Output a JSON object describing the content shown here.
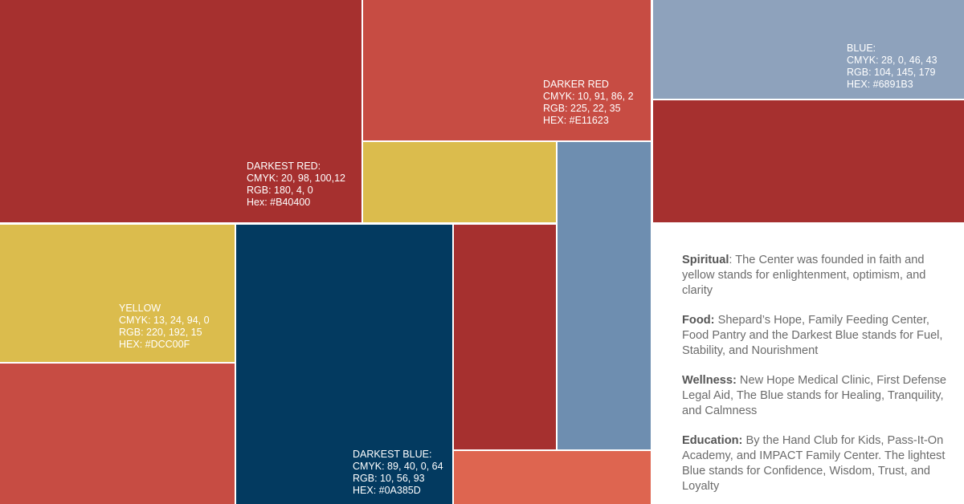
{
  "colors": {
    "darkest_red": "#A6302F",
    "darker_red": "#C74C43",
    "yellow": "#DBBC4D",
    "mid_blue": "#6E8EB0",
    "light_blue": "#8EA2BC",
    "darkest_blue": "#033A60",
    "coral": "#DE6550"
  },
  "swatches": {
    "darkest_red": {
      "name": "DARKEST RED:",
      "cmyk": "CMYK: 20, 98, 100,12",
      "rgb": "RGB: 180, 4, 0",
      "hex": "Hex: #B40400"
    },
    "darker_red": {
      "name": "DARKER RED",
      "cmyk": "CMYK: 10, 91, 86, 2",
      "rgb": "RGB: 225, 22, 35",
      "hex": "HEX: #E11623"
    },
    "blue": {
      "name": "BLUE:",
      "cmyk": "CMYK: 28, 0, 46, 43",
      "rgb": "RGB: 104, 145, 179",
      "hex": "HEX: #6891B3"
    },
    "yellow": {
      "name": "YELLOW",
      "cmyk": "CMYK: 13, 24, 94, 0",
      "rgb": "RGB: 220, 192, 15",
      "hex": "HEX: #DCC00F"
    },
    "darkest_blue": {
      "name": "DARKEST BLUE:",
      "cmyk": "CMYK: 89, 40, 0, 64",
      "rgb": "RGB: 10, 56, 93",
      "hex": "HEX: #0A385D"
    }
  },
  "legend": [
    {
      "title": "Spiritual",
      "text": ": The Center was founded in faith and yellow stands for enlightenment, optimism, and clarity"
    },
    {
      "title": "Food:",
      "text": " Shepard’s Hope, Family Feeding Center, Food Pantry and the Darkest Blue stands for Fuel, Stability, and Nourishment"
    },
    {
      "title": "Wellness:",
      "text": " New Hope Medical Clinic, First Defense Legal Aid, The Blue stands for Healing, Tranquility, and Calmness"
    },
    {
      "title": "Education:",
      "text": " By the Hand Club for Kids, Pass-It-On Academy, and IMPACT Family Center. The lightest Blue stands for Confidence, Wisdom, Trust, and Loyalty"
    }
  ]
}
